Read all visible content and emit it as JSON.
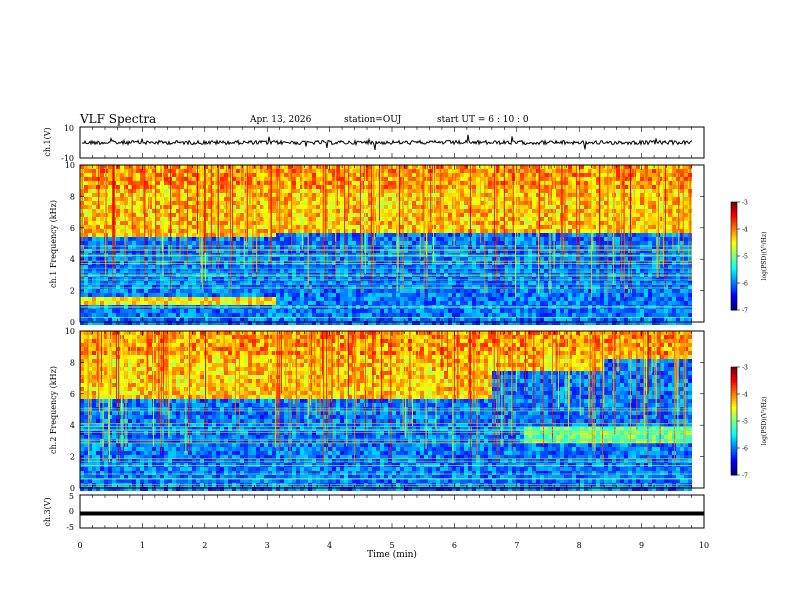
{
  "header": {
    "title": "VLF Spectra",
    "date": "Apr. 13, 2026",
    "station": "station=OUJ",
    "start_time": "start  UT =  6 : 10 : 0"
  },
  "colorbar": {
    "label": "log(PSD)(V²/Hz)",
    "ticks": [
      "-3",
      "-4",
      "-5",
      "-6",
      "-7"
    ]
  },
  "chart_data": [
    {
      "type": "line",
      "name": "ch1-waveform",
      "ylabel": "ch.1(V)",
      "ylim": [
        -10,
        10
      ],
      "ytick_labels": [
        "10",
        "-10"
      ],
      "xlim": [
        0,
        10
      ],
      "baseline_value": 0
    },
    {
      "type": "heatmap",
      "name": "ch1-spectrogram",
      "ylabel": "ch.1 Frequency (kHz)",
      "ylim": [
        0,
        10
      ],
      "ytick_labels": [
        "0",
        "2",
        "4",
        "6",
        "8",
        "10"
      ],
      "xlim": [
        0,
        10
      ],
      "clim": [
        -7,
        -3
      ],
      "colorbar_label": "log(PSD)(V²/Hz)"
    },
    {
      "type": "heatmap",
      "name": "ch2-spectrogram",
      "ylabel": "ch.2 Frequency (kHz)",
      "ylim": [
        0,
        10
      ],
      "ytick_labels": [
        "0",
        "2",
        "4",
        "6",
        "8",
        "10"
      ],
      "xlim": [
        0,
        10
      ],
      "clim": [
        -7,
        -3
      ],
      "colorbar_label": "log(PSD)(V²/Hz)"
    },
    {
      "type": "line",
      "name": "ch3-waveform",
      "ylabel": "ch.3(V)",
      "ylim": [
        -5,
        5
      ],
      "ytick_labels": [
        "5",
        "0",
        "-5"
      ],
      "xlim": [
        0,
        10
      ],
      "xlabel": "Time (min)",
      "xtick_labels": [
        "0",
        "1",
        "2",
        "3",
        "4",
        "5",
        "6",
        "7",
        "8",
        "9",
        "10"
      ],
      "baseline_value": -0.6
    }
  ]
}
